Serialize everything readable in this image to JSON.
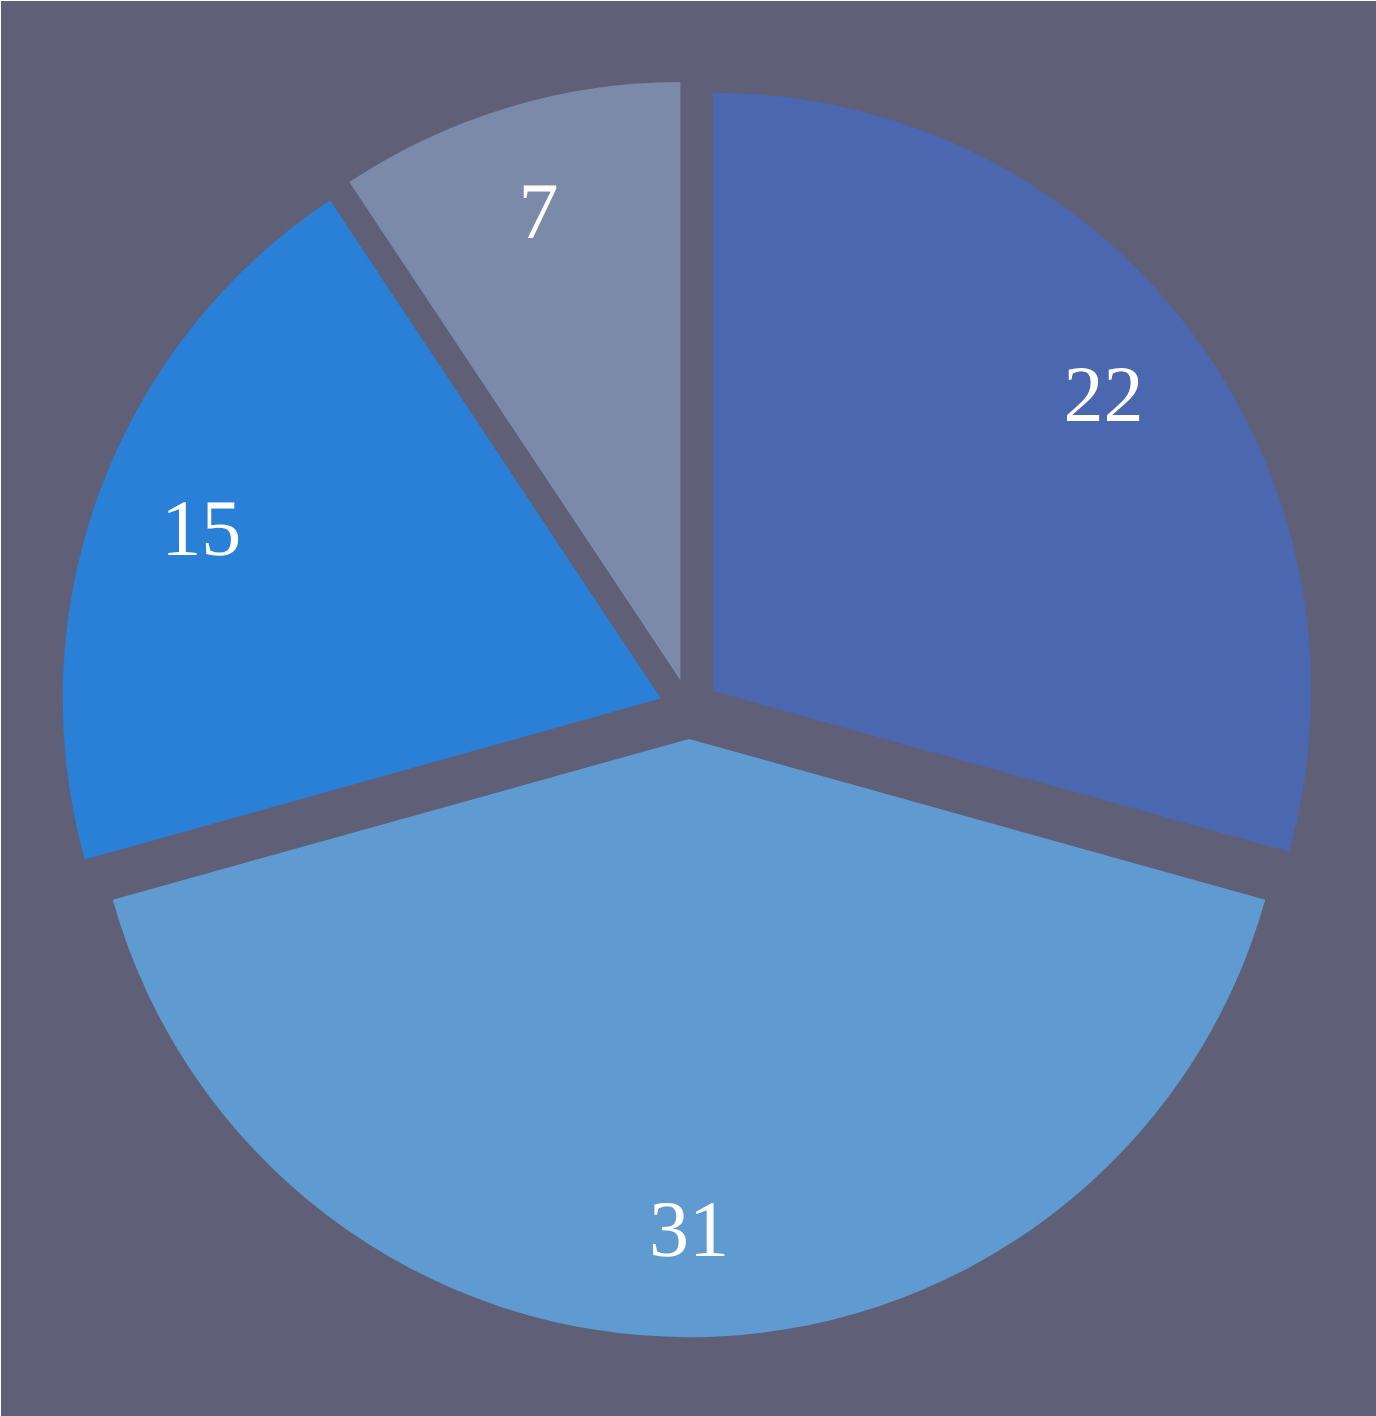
{
  "chart_data": {
    "type": "pie",
    "categories": [
      null,
      null,
      null,
      null
    ],
    "values": [
      22,
      31,
      15,
      7
    ],
    "colors": [
      "#4a67b0",
      "#5f9bd0",
      "#2a7fd6",
      "#7a8aa8"
    ],
    "data_labels": true
  }
}
